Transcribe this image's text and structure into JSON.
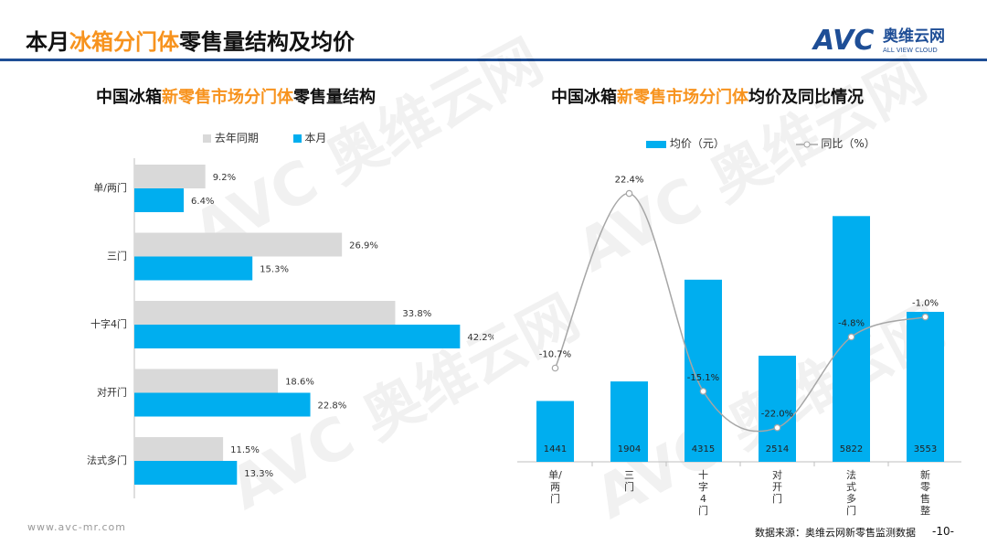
{
  "header": {
    "title_before": "本月",
    "title_highlight": "冰箱分门体",
    "title_after": "零售量结构及均价",
    "logo_text": "奥维云网",
    "logo_sub": "ALL VIEW CLOUD",
    "logo_mark": "AVC"
  },
  "left_chart_title": {
    "before": "中国冰箱",
    "highlight": "新零售市场分门体",
    "after": "零售量结构"
  },
  "right_chart_title": {
    "before": "中国冰箱",
    "highlight": "新零售市场分门体",
    "after": "均价及同比情况"
  },
  "footer": {
    "url": "www.avc-mr.com",
    "source": "数据来源：奥维云网新零售监测数据",
    "page": "-10-"
  },
  "colors": {
    "accent": "#f7931e",
    "blue": "#00aeef",
    "gray": "#d9d9d9",
    "line": "#a6a6a6",
    "navy": "#1e4e96"
  },
  "chart_data": [
    {
      "type": "bar",
      "orientation": "horizontal",
      "categories": [
        "单/两门",
        "三门",
        "十字4门",
        "对开门",
        "法式多门"
      ],
      "series": [
        {
          "name": "去年同期",
          "values": [
            9.2,
            26.9,
            33.8,
            18.6,
            11.5
          ],
          "labels": [
            "9.2%",
            "26.9%",
            "33.8%",
            "18.6%",
            "11.5%"
          ]
        },
        {
          "name": "本月",
          "values": [
            6.4,
            15.3,
            42.2,
            22.8,
            13.3
          ],
          "labels": [
            "6.4%",
            "15.3%",
            "42.2%",
            "22.8%",
            "13.3%"
          ]
        }
      ],
      "xlim": [
        0,
        45
      ],
      "legend": "top"
    },
    {
      "type": "bar+line",
      "categories": [
        "单/两门",
        "三门",
        "十字4门",
        "对开门",
        "法式多门",
        "新零售整体"
      ],
      "bars": {
        "name": "均价（元）",
        "values": [
          1441,
          1904,
          4315,
          2514,
          5822,
          3553
        ]
      },
      "line": {
        "name": "同比（%）",
        "values": [
          -10.7,
          22.4,
          -15.1,
          -22.0,
          -4.8,
          -1.0
        ],
        "labels": [
          "-10.7%",
          "22.4%",
          "-15.1%",
          "-22.0%",
          "-4.8%",
          "-1.0%"
        ]
      },
      "bar_ylim": [
        0,
        6500
      ],
      "line_ylim": [
        -25,
        27
      ],
      "legend": "top"
    }
  ]
}
